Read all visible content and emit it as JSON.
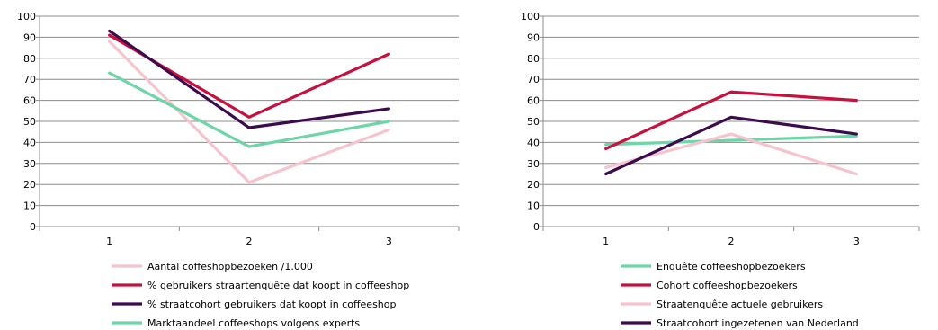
{
  "chart_data": [
    {
      "type": "line",
      "title": "",
      "xlabel": "",
      "ylabel": "",
      "x": [
        1,
        2,
        3
      ],
      "ylim": [
        0,
        100
      ],
      "yticks": [
        0,
        10,
        20,
        30,
        40,
        50,
        60,
        70,
        80,
        90,
        100
      ],
      "grid": true,
      "legend_position": "bottom",
      "series": [
        {
          "name": "Aantal coffeshopbezoeken /1.000",
          "color": "#f7c3cf",
          "values": [
            88,
            21,
            46
          ]
        },
        {
          "name": "% gebruikers straartenquête dat koopt in coffeeshop",
          "color": "#c8103e",
          "values": [
            91,
            52,
            82
          ]
        },
        {
          "name": "% straatcohort gebruikers dat koopt in coffeeshop",
          "color": "#3d0a4d",
          "values": [
            93,
            47,
            56
          ]
        },
        {
          "name": "Marktaandeel coffeeshops volgens experts",
          "color": "#6dd6a7",
          "values": [
            73,
            38,
            50
          ]
        }
      ]
    },
    {
      "type": "line",
      "title": "",
      "xlabel": "",
      "ylabel": "",
      "x": [
        1,
        2,
        3
      ],
      "ylim": [
        0,
        100
      ],
      "yticks": [
        0,
        10,
        20,
        30,
        40,
        50,
        60,
        70,
        80,
        90,
        100
      ],
      "grid": true,
      "legend_position": "bottom",
      "series": [
        {
          "name": "Enquête coffeeshopbezoekers",
          "color": "#6dd6a7",
          "values": [
            39,
            41,
            43
          ]
        },
        {
          "name": "Cohort coffeeshopbezoekers",
          "color": "#c8103e",
          "values": [
            37,
            64,
            60
          ]
        },
        {
          "name": "Straatenquête actuele gebruikers",
          "color": "#f7c3cf",
          "values": [
            28,
            44,
            25
          ]
        },
        {
          "name": "Straatcohort ingezetenen van Nederland",
          "color": "#3d0a4d",
          "values": [
            25,
            52,
            44
          ]
        }
      ]
    }
  ]
}
